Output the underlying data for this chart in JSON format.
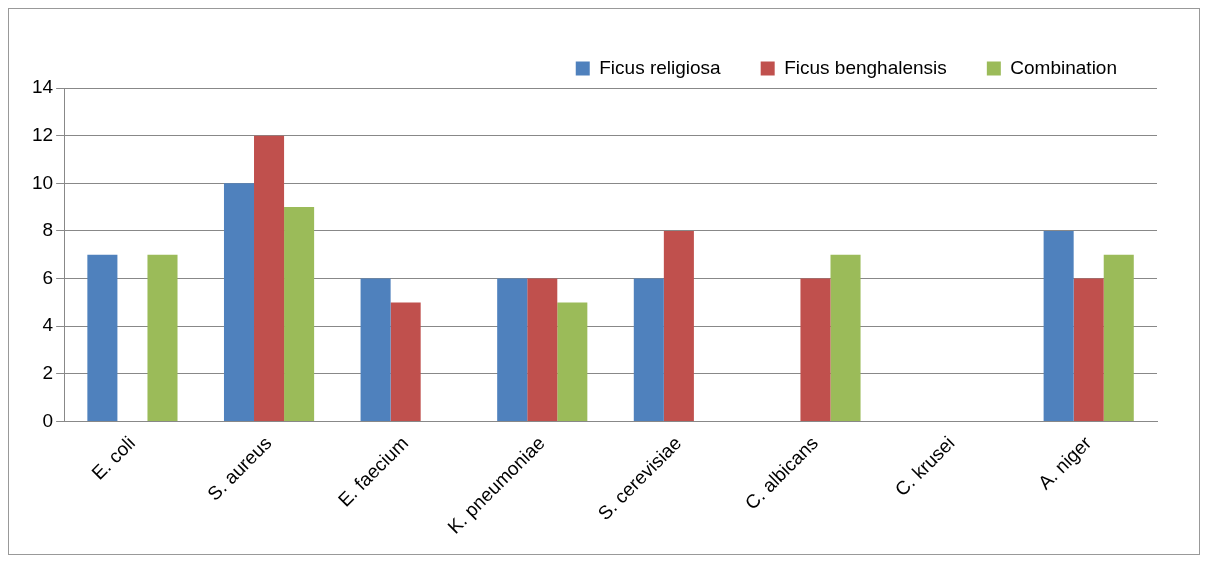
{
  "chart_data": {
    "type": "bar",
    "categories": [
      "E. coli",
      "S. aureus",
      "E. faecium",
      "K. pneumoniae",
      "S. cerevisiae",
      "C. albicans",
      "C. krusei",
      "A. niger"
    ],
    "series": [
      {
        "name": "Ficus religiosa",
        "color": "#4f81bd",
        "values": [
          7,
          10,
          6,
          6,
          6,
          0,
          0,
          8
        ]
      },
      {
        "name": "Ficus benghalensis",
        "color": "#c0504d",
        "values": [
          0,
          12,
          5,
          6,
          8,
          6,
          0,
          6
        ]
      },
      {
        "name": "Combination",
        "color": "#9bbb59",
        "values": [
          7,
          9,
          0,
          5,
          0,
          7,
          0,
          7
        ]
      }
    ],
    "ylim": [
      0,
      14
    ],
    "yticks": [
      0,
      2,
      4,
      6,
      8,
      10,
      12,
      14
    ],
    "grid": "y",
    "legend": "top right"
  }
}
